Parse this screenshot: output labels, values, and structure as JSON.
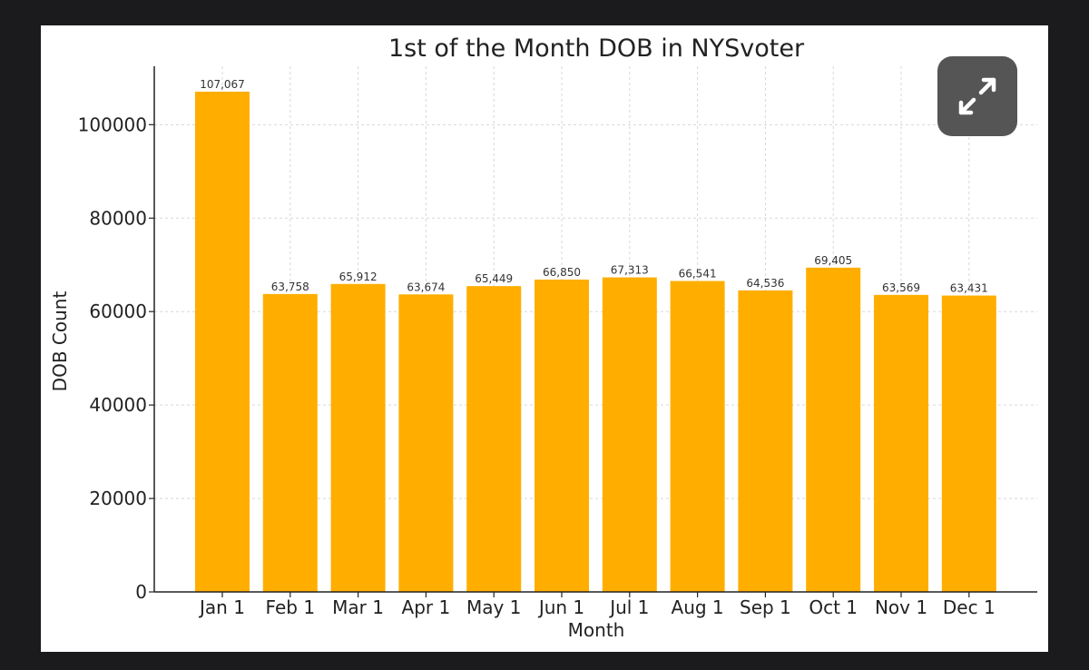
{
  "chart_data": {
    "type": "bar",
    "title": "1st of the Month DOB in NYSvoter",
    "xlabel": "Month",
    "ylabel": "DOB Count",
    "categories": [
      "Jan 1",
      "Feb 1",
      "Mar 1",
      "Apr 1",
      "May 1",
      "Jun 1",
      "Jul 1",
      "Aug 1",
      "Sep 1",
      "Oct 1",
      "Nov 1",
      "Dec 1"
    ],
    "values": [
      107067,
      63758,
      65912,
      63674,
      65449,
      66850,
      67313,
      66541,
      64536,
      69405,
      63569,
      63431
    ],
    "value_labels": [
      "107,067",
      "63,758",
      "65,912",
      "63,674",
      "65,449",
      "66,850",
      "67,313",
      "66,541",
      "64,536",
      "69,405",
      "63,569",
      "63,431"
    ],
    "yticks": [
      0,
      20000,
      40000,
      60000,
      80000,
      100000
    ],
    "ytick_labels": [
      "0",
      "20000",
      "40000",
      "60000",
      "80000",
      "100000"
    ],
    "ylim": [
      0,
      112500
    ],
    "grid": true,
    "bar_color": "#ffae00"
  },
  "controls": {
    "expand_icon": "expand-arrows-icon"
  }
}
